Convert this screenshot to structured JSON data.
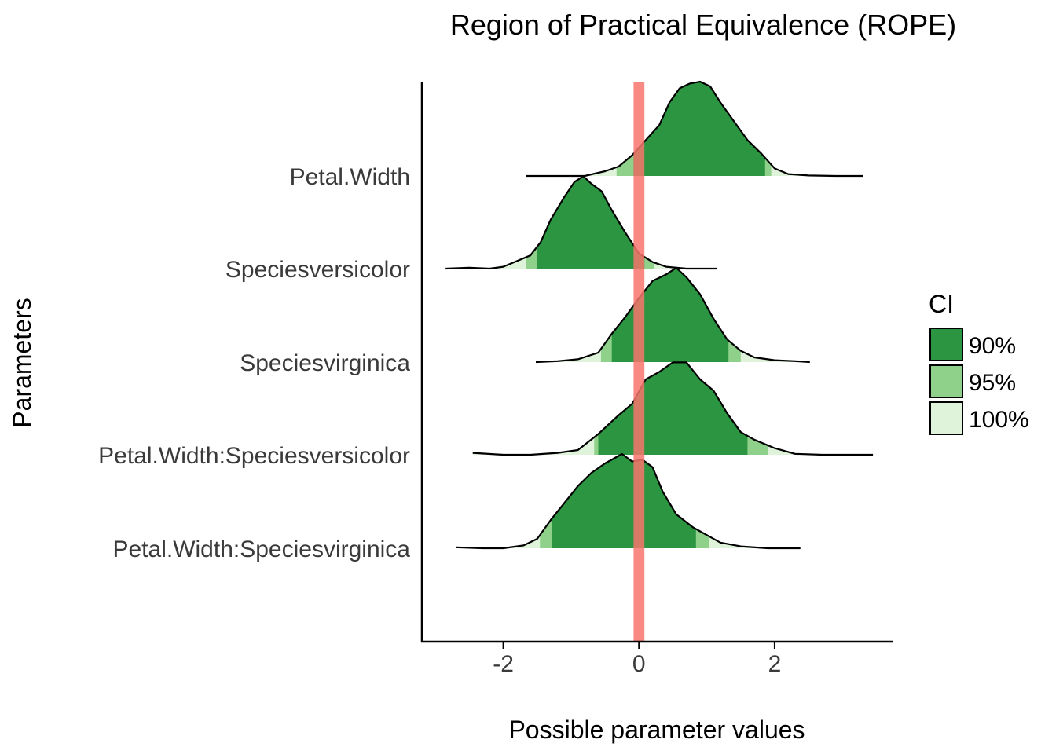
{
  "chart_data": {
    "type": "ridgeline",
    "title": "Region of Practical Equivalence (ROPE)",
    "xlabel": "Possible parameter values",
    "ylabel": "Parameters",
    "xlim": [
      -3.2,
      3.75
    ],
    "xticks": [
      -2,
      0,
      2
    ],
    "xtick_labels": [
      "-2",
      "0",
      "2"
    ],
    "rope": [
      -0.08,
      0.08
    ],
    "legend": {
      "title": "CI",
      "placement": "right",
      "items": [
        {
          "label": "90%",
          "color": "#2C9542"
        },
        {
          "label": "95%",
          "color": "#8FD18B"
        },
        {
          "label": "100%",
          "color": "#DFF3DA"
        }
      ]
    },
    "colors": {
      "ci90": "#2C9542",
      "ci95": "#8FD18B",
      "ci100": "#DFF3DA",
      "rope": "#F8766D",
      "outline": "#000000"
    },
    "series": [
      {
        "name": "Petal.Width",
        "ci90": [
          -0.08,
          1.86
        ],
        "ci95": [
          -0.33,
          1.95
        ],
        "range": [
          -1.66,
          3.3
        ],
        "density": [
          [
            -1.66,
            0.0
          ],
          [
            -1.2,
            0.0
          ],
          [
            -0.8,
            0.0
          ],
          [
            -0.5,
            0.05
          ],
          [
            -0.3,
            0.1
          ],
          [
            -0.1,
            0.22
          ],
          [
            0.1,
            0.38
          ],
          [
            0.3,
            0.54
          ],
          [
            0.45,
            0.78
          ],
          [
            0.6,
            0.93
          ],
          [
            0.75,
            0.98
          ],
          [
            0.9,
            1.0
          ],
          [
            1.05,
            0.95
          ],
          [
            1.2,
            0.78
          ],
          [
            1.4,
            0.58
          ],
          [
            1.6,
            0.38
          ],
          [
            1.8,
            0.24
          ],
          [
            2.0,
            0.08
          ],
          [
            2.2,
            0.02
          ],
          [
            2.5,
            0.005
          ],
          [
            2.9,
            0.0
          ],
          [
            3.3,
            0.0
          ]
        ]
      },
      {
        "name": "Speciesversicolor",
        "ci90": [
          -1.5,
          0.08
        ],
        "ci95": [
          -1.66,
          0.23
        ],
        "range": [
          -2.85,
          1.15
        ],
        "density": [
          [
            -2.85,
            0.0
          ],
          [
            -2.5,
            0.01
          ],
          [
            -2.2,
            0.0
          ],
          [
            -2.0,
            0.02
          ],
          [
            -1.8,
            0.08
          ],
          [
            -1.6,
            0.14
          ],
          [
            -1.45,
            0.28
          ],
          [
            -1.3,
            0.52
          ],
          [
            -1.1,
            0.76
          ],
          [
            -0.95,
            0.92
          ],
          [
            -0.82,
            0.98
          ],
          [
            -0.7,
            0.9
          ],
          [
            -0.55,
            0.82
          ],
          [
            -0.4,
            0.62
          ],
          [
            -0.2,
            0.38
          ],
          [
            0.0,
            0.16
          ],
          [
            0.2,
            0.07
          ],
          [
            0.4,
            0.02
          ],
          [
            0.7,
            0.0
          ],
          [
            1.15,
            0.0
          ]
        ]
      },
      {
        "name": "Speciesvirginica",
        "ci90": [
          -0.4,
          1.32
        ],
        "ci95": [
          -0.56,
          1.5
        ],
        "range": [
          -1.52,
          2.52
        ],
        "density": [
          [
            -1.52,
            0.0
          ],
          [
            -1.2,
            0.01
          ],
          [
            -0.9,
            0.03
          ],
          [
            -0.6,
            0.1
          ],
          [
            -0.4,
            0.3
          ],
          [
            -0.2,
            0.48
          ],
          [
            0.0,
            0.68
          ],
          [
            0.2,
            0.86
          ],
          [
            0.4,
            0.93
          ],
          [
            0.55,
            1.0
          ],
          [
            0.7,
            0.9
          ],
          [
            0.9,
            0.72
          ],
          [
            1.1,
            0.46
          ],
          [
            1.3,
            0.24
          ],
          [
            1.5,
            0.12
          ],
          [
            1.7,
            0.05
          ],
          [
            2.0,
            0.02
          ],
          [
            2.3,
            0.01
          ],
          [
            2.52,
            0.0
          ]
        ]
      },
      {
        "name": "Petal.Width:Speciesversicolor",
        "ci90": [
          -0.6,
          1.6
        ],
        "ci95": [
          -0.66,
          1.9
        ],
        "range": [
          -2.45,
          3.45
        ],
        "density": [
          [
            -2.45,
            0.02
          ],
          [
            -2.0,
            0.0
          ],
          [
            -1.6,
            0.0
          ],
          [
            -1.2,
            0.02
          ],
          [
            -0.9,
            0.05
          ],
          [
            -0.6,
            0.22
          ],
          [
            -0.3,
            0.42
          ],
          [
            -0.1,
            0.54
          ],
          [
            0.1,
            0.8
          ],
          [
            0.3,
            0.88
          ],
          [
            0.5,
            0.98
          ],
          [
            0.7,
            0.98
          ],
          [
            0.9,
            0.8
          ],
          [
            1.1,
            0.68
          ],
          [
            1.3,
            0.44
          ],
          [
            1.5,
            0.24
          ],
          [
            1.7,
            0.16
          ],
          [
            2.0,
            0.07
          ],
          [
            2.3,
            0.01
          ],
          [
            2.7,
            0.0
          ],
          [
            3.1,
            0.0
          ],
          [
            3.45,
            0.0
          ]
        ]
      },
      {
        "name": "Petal.Width:Speciesvirginica",
        "ci90": [
          -1.28,
          0.84
        ],
        "ci95": [
          -1.46,
          1.04
        ],
        "range": [
          -2.7,
          2.38
        ],
        "density": [
          [
            -2.7,
            0.01
          ],
          [
            -2.3,
            0.0
          ],
          [
            -2.0,
            0.0
          ],
          [
            -1.7,
            0.03
          ],
          [
            -1.5,
            0.1
          ],
          [
            -1.3,
            0.3
          ],
          [
            -1.1,
            0.48
          ],
          [
            -0.9,
            0.66
          ],
          [
            -0.7,
            0.8
          ],
          [
            -0.5,
            0.9
          ],
          [
            -0.25,
            1.0
          ],
          [
            -0.1,
            0.92
          ],
          [
            0.05,
            0.94
          ],
          [
            0.2,
            0.86
          ],
          [
            0.35,
            0.6
          ],
          [
            0.55,
            0.36
          ],
          [
            0.8,
            0.22
          ],
          [
            1.0,
            0.14
          ],
          [
            1.2,
            0.06
          ],
          [
            1.5,
            0.02
          ],
          [
            1.9,
            0.0
          ],
          [
            2.38,
            0.0
          ]
        ]
      }
    ]
  }
}
